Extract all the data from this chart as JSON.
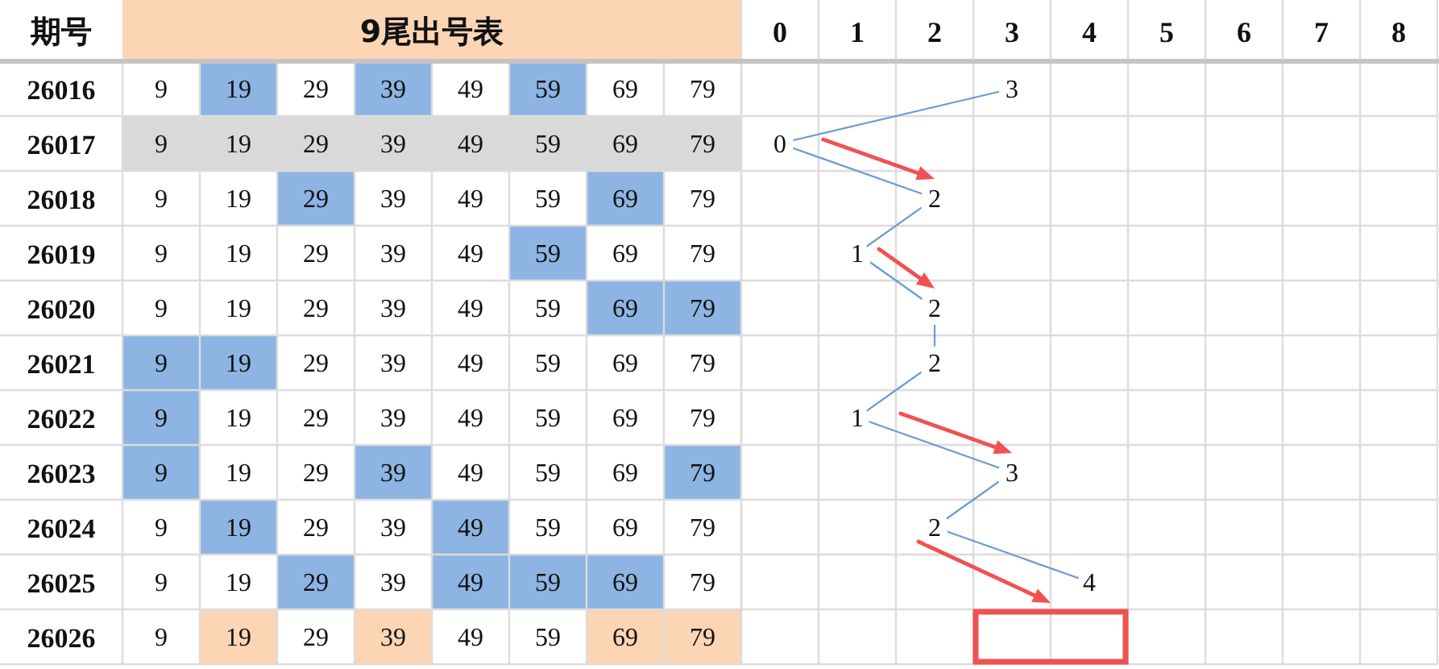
{
  "chart_data": [
    {
      "type": "heatmap",
      "title": "9尾出号表",
      "ylabel": "期号",
      "categories": [
        null,
        null,
        null,
        null,
        null,
        null,
        null,
        null
      ],
      "y_categories": [
        "26016",
        "26017",
        "26018",
        "26019",
        "26020",
        "26021",
        "26022",
        "26023",
        "26024",
        "26025",
        "26026"
      ],
      "cells": [
        [
          9,
          19,
          29,
          39,
          49,
          59,
          69,
          79
        ],
        [
          9,
          19,
          29,
          39,
          49,
          59,
          69,
          79
        ],
        [
          9,
          19,
          29,
          39,
          49,
          59,
          69,
          79
        ],
        [
          9,
          19,
          29,
          39,
          49,
          59,
          69,
          79
        ],
        [
          9,
          19,
          29,
          39,
          49,
          59,
          69,
          79
        ],
        [
          9,
          19,
          29,
          39,
          49,
          59,
          69,
          79
        ],
        [
          9,
          19,
          29,
          39,
          49,
          59,
          69,
          79
        ],
        [
          9,
          19,
          29,
          39,
          49,
          59,
          69,
          79
        ],
        [
          9,
          19,
          29,
          39,
          49,
          59,
          69,
          79
        ],
        [
          9,
          19,
          29,
          39,
          49,
          59,
          69,
          79
        ],
        [
          9,
          19,
          29,
          39,
          49,
          59,
          69,
          79
        ]
      ],
      "colors": [
        [
          "#ffffff",
          "#8db4e2",
          "#ffffff",
          "#8db4e2",
          "#ffffff",
          "#8db4e2",
          "#ffffff",
          "#ffffff"
        ],
        [
          "#d9d9d9",
          "#d9d9d9",
          "#d9d9d9",
          "#d9d9d9",
          "#d9d9d9",
          "#d9d9d9",
          "#d9d9d9",
          "#d9d9d9"
        ],
        [
          "#ffffff",
          "#ffffff",
          "#8db4e2",
          "#ffffff",
          "#ffffff",
          "#ffffff",
          "#8db4e2",
          "#ffffff"
        ],
        [
          "#ffffff",
          "#ffffff",
          "#ffffff",
          "#ffffff",
          "#ffffff",
          "#8db4e2",
          "#ffffff",
          "#ffffff"
        ],
        [
          "#ffffff",
          "#ffffff",
          "#ffffff",
          "#ffffff",
          "#ffffff",
          "#ffffff",
          "#8db4e2",
          "#8db4e2"
        ],
        [
          "#8db4e2",
          "#8db4e2",
          "#ffffff",
          "#ffffff",
          "#ffffff",
          "#ffffff",
          "#ffffff",
          "#ffffff"
        ],
        [
          "#8db4e2",
          "#ffffff",
          "#ffffff",
          "#ffffff",
          "#ffffff",
          "#ffffff",
          "#ffffff",
          "#ffffff"
        ],
        [
          "#8db4e2",
          "#ffffff",
          "#ffffff",
          "#8db4e2",
          "#ffffff",
          "#ffffff",
          "#ffffff",
          "#8db4e2"
        ],
        [
          "#ffffff",
          "#8db4e2",
          "#ffffff",
          "#ffffff",
          "#8db4e2",
          "#ffffff",
          "#ffffff",
          "#ffffff"
        ],
        [
          "#ffffff",
          "#ffffff",
          "#8db4e2",
          "#ffffff",
          "#8db4e2",
          "#8db4e2",
          "#8db4e2",
          "#ffffff"
        ],
        [
          "#ffffff",
          "#fcd5b4",
          "#ffffff",
          "#fcd5b4",
          "#ffffff",
          "#ffffff",
          "#fcd5b4",
          "#fcd5b4"
        ]
      ],
      "data_labels": true,
      "grid": true,
      "tick_labels": "y"
    },
    {
      "type": "line",
      "orientation": "horizontal",
      "categories": [
        "26016",
        "26017",
        "26018",
        "26019",
        "26020",
        "26021",
        "26022",
        "26023",
        "26024",
        "26025",
        "26026"
      ],
      "values": [
        3,
        0,
        2,
        1,
        2,
        2,
        1,
        3,
        2,
        4,
        null
      ],
      "color": "#6a9bd6",
      "xlim": [
        -0.5,
        8.5
      ],
      "xticks": [
        0,
        1,
        2,
        3,
        4,
        5,
        6,
        7,
        8
      ],
      "data_labels": true,
      "grid": true,
      "tick_labels": "x"
    }
  ]
}
